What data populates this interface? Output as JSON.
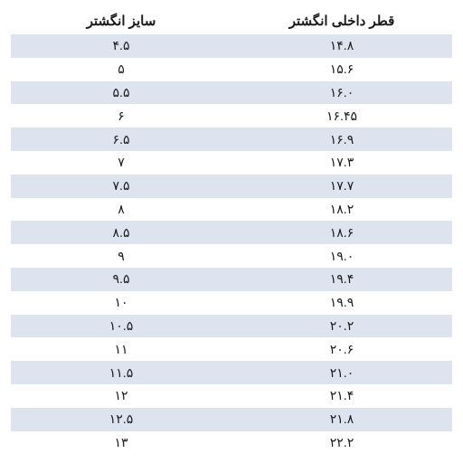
{
  "table": {
    "type": "table",
    "columns": [
      "قطر داخلی انگشتر",
      "سایز انگشتر"
    ],
    "header_fontsize": 15,
    "header_weight": "bold",
    "cell_fontsize": 14,
    "text_color": "#1a1a1a",
    "stripe_color": "#dde4f0",
    "background_color": "#ffffff",
    "rows": [
      {
        "diameter": "۱۴.۸",
        "size": "۴.۵"
      },
      {
        "diameter": "۱۵.۶",
        "size": "۵"
      },
      {
        "diameter": "۱۶.۰",
        "size": "۵.۵"
      },
      {
        "diameter": "۱۶.۴۵",
        "size": "۶"
      },
      {
        "diameter": "۱۶.۹",
        "size": "۶.۵"
      },
      {
        "diameter": "۱۷.۳",
        "size": "۷"
      },
      {
        "diameter": "۱۷.۷",
        "size": "۷.۵"
      },
      {
        "diameter": "۱۸.۲",
        "size": "۸"
      },
      {
        "diameter": "۱۸.۶",
        "size": "۸.۵"
      },
      {
        "diameter": "۱۹.۰",
        "size": "۹"
      },
      {
        "diameter": "۱۹.۴",
        "size": "۹.۵"
      },
      {
        "diameter": "۱۹.۹",
        "size": "۱۰"
      },
      {
        "diameter": "۲۰.۲",
        "size": "۱۰.۵"
      },
      {
        "diameter": "۲۰.۶",
        "size": "۱۱"
      },
      {
        "diameter": "۲۱.۰",
        "size": "۱۱.۵"
      },
      {
        "diameter": "۲۱.۴",
        "size": "۱۲"
      },
      {
        "diameter": "۲۱.۸",
        "size": "۱۲.۵"
      },
      {
        "diameter": "۲۲.۲",
        "size": "۱۳"
      }
    ]
  }
}
